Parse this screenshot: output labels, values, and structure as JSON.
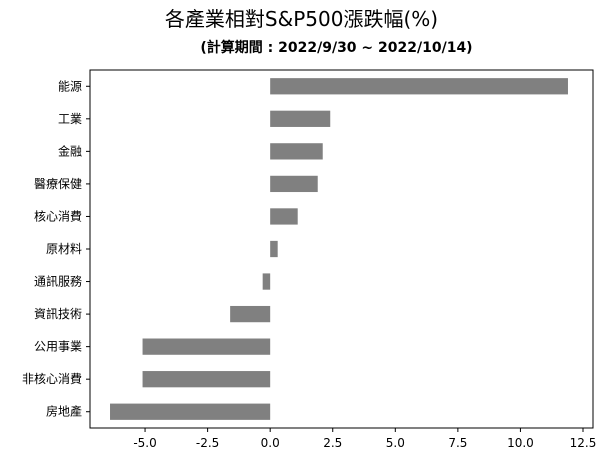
{
  "chart_data": {
    "type": "bar",
    "orientation": "horizontal",
    "title": "各產業相對S&P500漲跌幅(%)",
    "subtitle": "(計算期間 : 2022/9/30 ~ 2022/10/14)",
    "categories": [
      "能源",
      "工業",
      "金融",
      "醫療保健",
      "核心消費",
      "原材料",
      "通訊服務",
      "資訊技術",
      "公用事業",
      "非核心消費",
      "房地產"
    ],
    "values": [
      11.9,
      2.4,
      2.1,
      1.9,
      1.1,
      0.3,
      -0.3,
      -1.6,
      -5.1,
      -5.1,
      -6.4
    ],
    "xlim": [
      -7.2,
      12.9
    ],
    "xticks": [
      -5.0,
      -2.5,
      0.0,
      2.5,
      5.0,
      7.5,
      10.0,
      12.5
    ],
    "xtick_labels": [
      "-5.0",
      "-2.5",
      "0.0",
      "2.5",
      "5.0",
      "7.5",
      "10.0",
      "12.5"
    ],
    "xlabel": "",
    "ylabel": "",
    "grid": false,
    "legend": "none",
    "bar_color": "#808080"
  }
}
